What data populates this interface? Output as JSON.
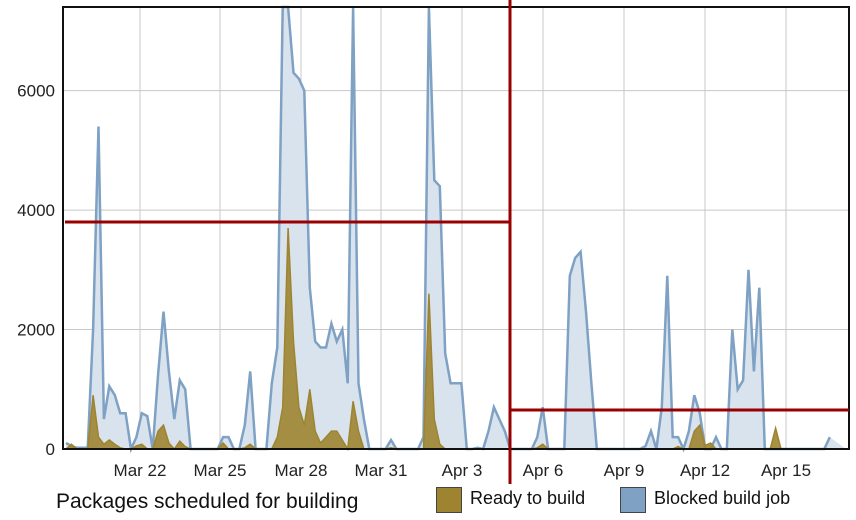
{
  "chart_data": {
    "type": "area",
    "title": "",
    "xlabel": "",
    "ylabel": "",
    "ylim": [
      0,
      7400
    ],
    "x_ticks": [
      "Mar 22",
      "Mar 25",
      "Mar 28",
      "Mar 31",
      "Apr 3",
      "Apr 6",
      "Apr 9",
      "Apr 12",
      "Apr 15"
    ],
    "y_ticks": [
      "0",
      "2000",
      "4000",
      "6000"
    ],
    "y_tick_values": [
      0,
      2000,
      4000,
      6000
    ],
    "grid": true,
    "legend_title": "Packages scheduled for building",
    "legend_position": "bottom",
    "series": [
      {
        "name": "Ready to build",
        "color": "#9e8430",
        "values": [
          0,
          80,
          0,
          0,
          0,
          900,
          200,
          80,
          150,
          80,
          20,
          0,
          0,
          50,
          80,
          0,
          0,
          300,
          400,
          100,
          0,
          130,
          40,
          0,
          0,
          0,
          0,
          0,
          0,
          100,
          0,
          0,
          0,
          20,
          80,
          0,
          0,
          0,
          0,
          200,
          700,
          3700,
          1800,
          700,
          400,
          1000,
          300,
          100,
          200,
          300,
          300,
          150,
          0,
          800,
          300,
          0,
          0,
          0,
          0,
          0,
          20,
          0,
          0,
          0,
          0,
          0,
          0,
          2600,
          500,
          80,
          0,
          0,
          0,
          0,
          0,
          0,
          0,
          0,
          0,
          0,
          0,
          0,
          0,
          0,
          0,
          0,
          0,
          20,
          80,
          0,
          0,
          0,
          0,
          0,
          0,
          0,
          0,
          0,
          0,
          0,
          0,
          0,
          0,
          0,
          0,
          0,
          0,
          0,
          0,
          0,
          0,
          0,
          0,
          40,
          0,
          0,
          300,
          400,
          60,
          100,
          0,
          0,
          0,
          0,
          0,
          0,
          0,
          0,
          0,
          0,
          0,
          350,
          0,
          0,
          0,
          0,
          0,
          0,
          0,
          0,
          0,
          0,
          0,
          0,
          0
        ]
      },
      {
        "name": "Blocked build job",
        "color": "#7fa1c3",
        "values": [
          100,
          50,
          20,
          20,
          20,
          2000,
          5400,
          500,
          1050,
          900,
          600,
          600,
          0,
          200,
          600,
          550,
          0,
          1250,
          2300,
          1300,
          500,
          1150,
          1000,
          0,
          0,
          0,
          0,
          0,
          0,
          200,
          200,
          0,
          0,
          400,
          1300,
          0,
          0,
          0,
          1100,
          1700,
          7400,
          7400,
          6300,
          6200,
          6000,
          2700,
          1800,
          1700,
          1700,
          2100,
          1800,
          2000,
          1100,
          7400,
          1100,
          500,
          0,
          0,
          0,
          0,
          150,
          0,
          0,
          0,
          0,
          0,
          200,
          7400,
          4500,
          4400,
          1600,
          1100,
          1100,
          1100,
          0,
          0,
          20,
          0,
          300,
          700,
          500,
          300,
          0,
          0,
          0,
          0,
          0,
          200,
          700,
          0,
          0,
          0,
          0,
          2900,
          3200,
          3300,
          2300,
          1100,
          0,
          0,
          0,
          0,
          0,
          0,
          0,
          0,
          0,
          50,
          300,
          0,
          700,
          2900,
          200,
          200,
          0,
          300,
          900,
          600,
          0,
          0,
          200,
          0,
          0,
          2000,
          1000,
          1150,
          3000,
          1300,
          2700,
          0,
          0,
          0,
          0,
          0,
          0,
          0,
          0,
          0,
          0,
          0,
          0,
          200
        ]
      }
    ]
  }
}
